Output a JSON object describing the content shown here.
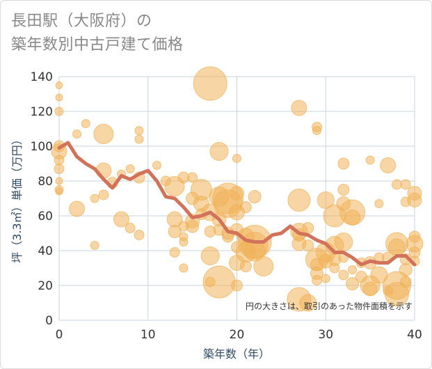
{
  "title_lines": [
    "長田駅（大阪府）の",
    "築年数別中古戸建て価格"
  ],
  "colors": {
    "bubble": "#f0b35a",
    "line": "#d2725a",
    "grid": "#c9d3de",
    "axis_text": "#2f4b66"
  },
  "chart_data": {
    "type": "scatter",
    "title": "長田駅（大阪府）の築年数別中古戸建て価格",
    "xlabel": "築年数（年）",
    "ylabel": "坪（3.3㎡）単価（万円）",
    "xlim": [
      0,
      40
    ],
    "ylim": [
      0,
      140
    ],
    "xticks": [
      "0",
      "10",
      "20",
      "30",
      "40"
    ],
    "yticks": [
      "0",
      "20",
      "40",
      "60",
      "80",
      "100",
      "120",
      "140"
    ],
    "grid": true,
    "note": "円の大きさは、取引のあった物件面積を示す",
    "bubbles": [
      [
        0,
        135,
        5
      ],
      [
        0,
        128,
        5
      ],
      [
        0,
        120,
        6
      ],
      [
        0,
        100,
        8
      ],
      [
        0,
        97,
        11
      ],
      [
        0,
        92,
        7
      ],
      [
        0,
        87,
        7
      ],
      [
        0,
        80,
        5
      ],
      [
        0,
        75,
        6
      ],
      [
        0,
        74,
        5
      ],
      [
        2,
        107,
        6
      ],
      [
        3,
        113,
        6
      ],
      [
        2,
        64,
        11
      ],
      [
        4,
        70,
        6
      ],
      [
        4,
        43,
        6
      ],
      [
        5,
        107,
        14
      ],
      [
        5,
        86,
        11
      ],
      [
        5,
        72,
        7
      ],
      [
        6,
        79,
        8
      ],
      [
        7,
        84,
        6
      ],
      [
        7,
        58,
        11
      ],
      [
        8,
        87,
        6
      ],
      [
        8,
        53,
        7
      ],
      [
        9,
        109,
        6
      ],
      [
        9,
        104,
        6
      ],
      [
        9,
        82,
        8
      ],
      [
        9,
        49,
        7
      ],
      [
        11,
        89,
        6
      ],
      [
        12,
        80,
        7
      ],
      [
        13,
        77,
        14
      ],
      [
        13,
        58,
        11
      ],
      [
        13,
        51,
        9
      ],
      [
        13,
        39,
        7
      ],
      [
        14,
        82,
        8
      ],
      [
        14,
        54,
        7
      ],
      [
        14,
        48,
        6
      ],
      [
        14,
        45,
        6
      ],
      [
        14,
        30,
        6
      ],
      [
        15,
        82,
        7
      ],
      [
        15,
        57,
        10
      ],
      [
        15,
        54,
        9
      ],
      [
        15,
        70,
        9
      ],
      [
        16,
        75,
        15
      ],
      [
        16,
        67,
        11
      ],
      [
        16,
        61,
        8
      ],
      [
        17,
        136,
        24
      ],
      [
        17,
        62,
        12
      ],
      [
        17,
        51,
        8
      ],
      [
        17,
        37,
        13
      ],
      [
        17,
        22,
        7
      ],
      [
        18,
        97,
        13
      ],
      [
        18,
        71,
        14
      ],
      [
        18,
        58,
        10
      ],
      [
        18,
        52,
        8
      ],
      [
        18,
        22,
        23
      ],
      [
        19,
        70,
        22
      ],
      [
        19,
        67,
        20
      ],
      [
        19,
        50,
        9
      ],
      [
        19,
        48,
        8
      ],
      [
        20,
        93,
        6
      ],
      [
        20,
        73,
        10
      ],
      [
        20,
        62,
        11
      ],
      [
        20,
        52,
        9
      ],
      [
        20,
        42,
        8
      ],
      [
        20,
        33,
        11
      ],
      [
        20,
        20,
        8
      ],
      [
        21,
        65,
        8
      ],
      [
        21,
        48,
        12
      ],
      [
        21,
        39,
        14
      ],
      [
        21,
        31,
        8
      ],
      [
        22,
        71,
        9
      ],
      [
        22,
        45,
        24
      ],
      [
        22,
        43,
        19
      ],
      [
        22,
        40,
        15
      ],
      [
        23,
        31,
        14
      ],
      [
        27,
        122,
        11
      ],
      [
        27,
        69,
        16
      ],
      [
        27,
        51,
        12
      ],
      [
        27,
        49,
        9
      ],
      [
        27,
        44,
        10
      ],
      [
        27,
        12,
        17
      ],
      [
        28,
        53,
        8
      ],
      [
        28,
        43,
        8
      ],
      [
        28,
        10,
        12
      ],
      [
        29,
        111,
        7
      ],
      [
        29,
        109,
        6
      ],
      [
        29,
        35,
        16
      ],
      [
        29,
        32,
        9
      ],
      [
        29,
        27,
        9
      ],
      [
        29,
        23,
        7
      ],
      [
        30,
        69,
        12
      ],
      [
        30,
        39,
        14
      ],
      [
        30,
        34,
        10
      ],
      [
        30,
        24,
        6
      ],
      [
        31,
        60,
        16
      ],
      [
        31,
        43,
        13
      ],
      [
        31,
        35,
        9
      ],
      [
        31,
        30,
        7
      ],
      [
        32,
        90,
        8
      ],
      [
        32,
        75,
        8
      ],
      [
        32,
        67,
        10
      ],
      [
        32,
        45,
        13
      ],
      [
        32,
        36,
        7
      ],
      [
        32,
        26,
        7
      ],
      [
        33,
        62,
        18
      ],
      [
        33,
        59,
        11
      ],
      [
        33,
        21,
        9
      ],
      [
        33,
        29,
        6
      ],
      [
        34,
        33,
        7
      ],
      [
        34,
        25,
        8
      ],
      [
        35,
        92,
        6
      ],
      [
        35,
        33,
        9
      ],
      [
        35,
        20,
        14
      ],
      [
        35,
        18,
        10
      ],
      [
        36,
        67,
        6
      ],
      [
        36,
        36,
        7
      ],
      [
        36,
        26,
        12
      ],
      [
        37,
        89,
        11
      ],
      [
        37,
        36,
        8
      ],
      [
        37,
        17,
        7
      ],
      [
        38,
        78,
        7
      ],
      [
        38,
        44,
        16
      ],
      [
        38,
        42,
        12
      ],
      [
        38,
        20,
        20
      ],
      [
        38,
        15,
        17
      ],
      [
        39,
        78,
        7
      ],
      [
        39,
        68,
        7
      ],
      [
        39,
        35,
        8
      ],
      [
        39,
        29,
        9
      ],
      [
        39,
        22,
        8
      ],
      [
        40,
        73,
        10
      ],
      [
        40,
        69,
        10
      ],
      [
        40,
        48,
        8
      ],
      [
        40,
        44,
        12
      ],
      [
        40,
        39,
        8
      ],
      [
        40,
        34,
        7
      ]
    ],
    "trend": {
      "x": [
        0,
        1,
        2,
        3,
        4,
        5,
        6,
        7,
        8,
        9,
        10,
        11,
        12,
        13,
        14,
        15,
        16,
        17,
        18,
        19,
        20,
        21,
        22,
        23,
        24,
        25,
        26,
        27,
        28,
        29,
        30,
        31,
        32,
        33,
        34,
        35,
        36,
        37,
        38,
        39,
        40
      ],
      "y": [
        99,
        102,
        94,
        90,
        87,
        81,
        76,
        83,
        81,
        84,
        86,
        80,
        71,
        70,
        65,
        59,
        60,
        62,
        58,
        51,
        50,
        46,
        45,
        45,
        49,
        50,
        54,
        50,
        49,
        46,
        44,
        39,
        39,
        36,
        32,
        34,
        33,
        33,
        37,
        37,
        32
      ]
    }
  }
}
